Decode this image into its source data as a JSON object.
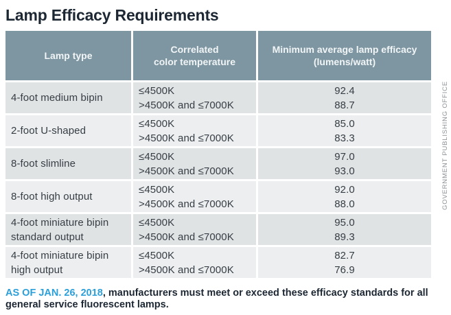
{
  "title": "Lamp Efficacy Requirements",
  "credit": "GOVERNMENT PUBLISHING OFFICE",
  "footnote": {
    "highlight": "AS OF JAN. 26, 2018",
    "rest": ", manufacturers must meet or exceed these efficacy standards for all general service fluorescent lamps."
  },
  "table": {
    "headers": [
      {
        "lines": [
          "Lamp type",
          ""
        ]
      },
      {
        "lines": [
          "Correlated",
          "color temperature"
        ]
      },
      {
        "lines": [
          "Minimum average lamp efficacy",
          "(lumens/watt)"
        ]
      }
    ],
    "rows": [
      {
        "lamp_type": "4-foot medium bipin",
        "cct": [
          "≤4500K",
          ">4500K and ≤7000K"
        ],
        "efficacy": [
          "92.4",
          "88.7"
        ]
      },
      {
        "lamp_type": "2-foot U-shaped",
        "cct": [
          "≤4500K",
          ">4500K and ≤7000K"
        ],
        "efficacy": [
          "85.0",
          "83.3"
        ]
      },
      {
        "lamp_type": "8-foot slimline",
        "cct": [
          "≤4500K",
          ">4500K and ≤7000K"
        ],
        "efficacy": [
          "97.0",
          "93.0"
        ]
      },
      {
        "lamp_type": "8-foot high output",
        "cct": [
          "≤4500K",
          ">4500K and ≤7000K"
        ],
        "efficacy": [
          "92.0",
          "88.0"
        ]
      },
      {
        "lamp_type": "4-foot miniature bipin\nstandard output",
        "cct": [
          "≤4500K",
          ">4500K and ≤7000K"
        ],
        "efficacy": [
          "95.0",
          "89.3"
        ]
      },
      {
        "lamp_type": "4-foot miniature bipin\nhigh output",
        "cct": [
          "≤4500K",
          ">4500K and ≤7000K"
        ],
        "efficacy": [
          "82.7",
          "76.9"
        ]
      }
    ]
  },
  "colors": {
    "header_bg": "#7d96a2",
    "row_dark": "#e0e3e4",
    "row_light": "#edeeef",
    "title_text": "#1c2733",
    "body_text": "#363d44",
    "footnote_blue": "#2b9fd9",
    "credit_gray": "#8d9296"
  },
  "chart_data": {
    "type": "table",
    "title": "Lamp Efficacy Requirements",
    "columns": [
      "Lamp type",
      "Correlated color temperature",
      "Minimum average lamp efficacy (lumens/watt)"
    ],
    "rows": [
      [
        "4-foot medium bipin",
        "≤4500K",
        92.4
      ],
      [
        "4-foot medium bipin",
        ">4500K and ≤7000K",
        88.7
      ],
      [
        "2-foot U-shaped",
        "≤4500K",
        85.0
      ],
      [
        "2-foot U-shaped",
        ">4500K and ≤7000K",
        83.3
      ],
      [
        "8-foot slimline",
        "≤4500K",
        97.0
      ],
      [
        "8-foot slimline",
        ">4500K and ≤7000K",
        93.0
      ],
      [
        "8-foot high output",
        "≤4500K",
        92.0
      ],
      [
        "8-foot high output",
        ">4500K and ≤7000K",
        88.0
      ],
      [
        "4-foot miniature bipin standard output",
        "≤4500K",
        95.0
      ],
      [
        "4-foot miniature bipin standard output",
        ">4500K and ≤7000K",
        89.3
      ],
      [
        "4-foot miniature bipin high output",
        "≤4500K",
        82.7
      ],
      [
        "4-foot miniature bipin high output",
        ">4500K and ≤7000K",
        76.9
      ]
    ],
    "footnote": "AS OF JAN. 26, 2018, manufacturers must meet or exceed these efficacy standards for all general service fluorescent lamps.",
    "credit": "GOVERNMENT PUBLISHING OFFICE"
  }
}
